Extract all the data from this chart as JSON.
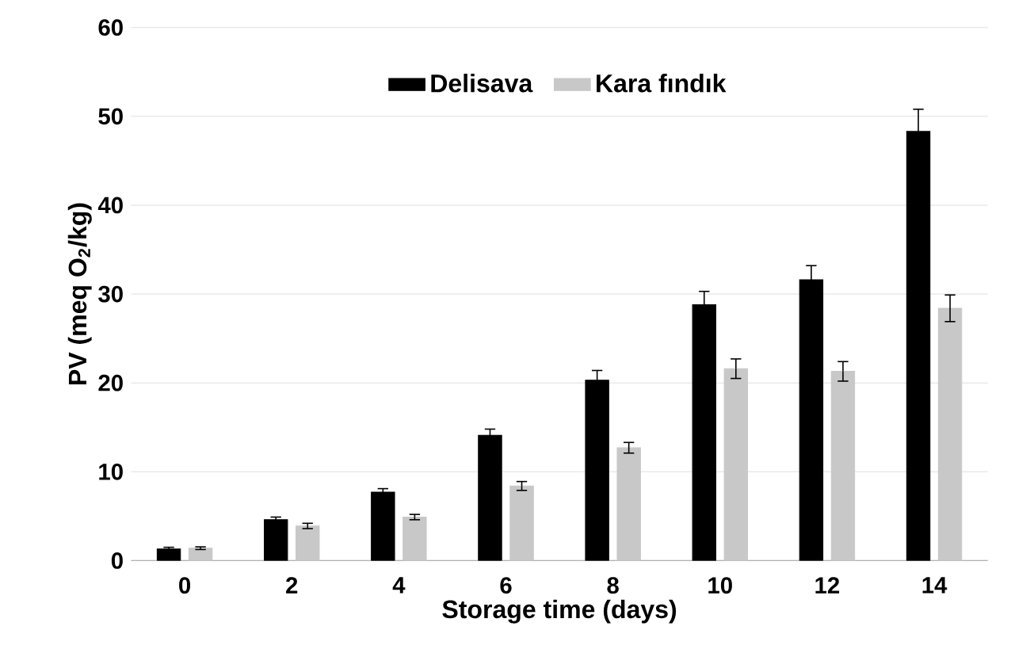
{
  "chart_data": {
    "type": "bar",
    "xlabel": "Storage time (days)",
    "ylabel": "PV (meq O$_{2}$/kg)",
    "categories": [
      "0",
      "2",
      "4",
      "6",
      "8",
      "10",
      "12",
      "14"
    ],
    "series": [
      {
        "name": "Delisava",
        "color": "#000000",
        "values": [
          1.3,
          4.6,
          7.7,
          14.1,
          20.3,
          28.8,
          31.6,
          48.3
        ],
        "errors": [
          0.2,
          0.3,
          0.4,
          0.7,
          1.1,
          1.5,
          1.6,
          2.5
        ]
      },
      {
        "name": "Kara fındık",
        "color": "#c8c8c8",
        "values": [
          1.4,
          3.9,
          4.9,
          8.4,
          12.7,
          21.6,
          21.3,
          28.4
        ],
        "errors": [
          0.15,
          0.3,
          0.3,
          0.5,
          0.6,
          1.1,
          1.1,
          1.5
        ]
      }
    ],
    "ylim": [
      0,
      60
    ],
    "yticks": [
      0,
      10,
      20,
      30,
      40,
      50,
      60
    ],
    "grid": "y",
    "legend": "top"
  }
}
